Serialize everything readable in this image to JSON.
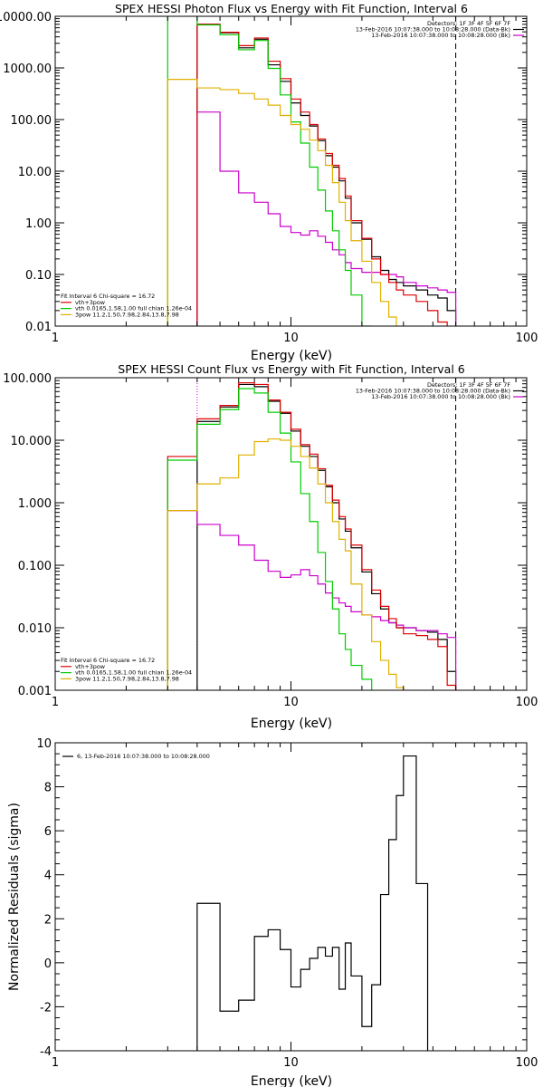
{
  "chart_data": [
    {
      "type": "line",
      "title": "SPEX HESSI Photon Flux vs Energy with Fit Function, Interval 6",
      "xlabel": "Energy (keV)",
      "ylabel": "",
      "xscale": "log",
      "yscale": "log",
      "xlim": [
        1,
        100
      ],
      "ylim": [
        0.01,
        10000
      ],
      "xticks": [
        1,
        10,
        100
      ],
      "xticklabels": [
        "1",
        "10",
        "100"
      ],
      "yticks": [
        0.01,
        0.1,
        1,
        10,
        100,
        1000,
        10000
      ],
      "yticklabels": [
        "0.01",
        "0.10",
        "1.00",
        "10.00",
        "100.00",
        "1000.00",
        "10000.00"
      ],
      "vlines": [
        {
          "x": 4,
          "color": "#cc00cc",
          "style": "dotted"
        },
        {
          "x": 50,
          "color": "#000000",
          "style": "dashed"
        }
      ],
      "legend_top_right": [
        "Detectors: 1F 3F 4F 5F 6F 7F",
        "13-Feb-2016 10:07:38.000 to 10:08:28.000 (Data-Bk)",
        "13-Feb-2016 10:07:38.000 to 10:08:28.000 (Bk)"
      ],
      "legend_top_right_colors": [
        "",
        "#000000",
        "#cc00cc"
      ],
      "legend_bottom_left": [
        "Fit Interval 6   Chi-square = 16.72",
        "vth+3pow",
        "vth 0.0165,1.58,1.00  full chian 1.26e-04",
        "3pow 11.2,1.50,7.98,2.84,13.8,7.98"
      ],
      "legend_bottom_left_colors": [
        "",
        "#dd0000",
        "#00cc00",
        "#e0b000"
      ],
      "edges": [
        3,
        4,
        5,
        6,
        7,
        8,
        9,
        10,
        11,
        12,
        13,
        14,
        15,
        16,
        17,
        18,
        20,
        22,
        24,
        26,
        28,
        30,
        34,
        38,
        42,
        46,
        50
      ],
      "series": [
        {
          "name": "Data-Bk",
          "color": "#000000",
          "start": 1,
          "values": [
            7000,
            4800,
            2450,
            3600,
            1150,
            550,
            210,
            120,
            75,
            39,
            20,
            12,
            6.5,
            3.0,
            1.0,
            0.48,
            0.22,
            0.12,
            0.08,
            0.07,
            0.06,
            0.05,
            0.04,
            0.035,
            0.02
          ]
        },
        {
          "name": "Bk",
          "color": "#cc00cc",
          "start": 1,
          "values": [
            140,
            10,
            3.8,
            2.5,
            1.5,
            0.85,
            0.65,
            0.58,
            0.7,
            0.55,
            0.42,
            0.3,
            0.24,
            0.17,
            0.13,
            0.11,
            0.11,
            0.1,
            0.1,
            0.09,
            0.07,
            0.06,
            0.055,
            0.05,
            0.045
          ]
        },
        {
          "name": "vth+3pow",
          "color": "#dd0000",
          "start": 1,
          "values": [
            7000,
            4900,
            2700,
            3800,
            1350,
            620,
            250,
            140,
            80,
            42,
            22,
            13,
            7.2,
            3.3,
            1.1,
            0.5,
            0.2,
            0.1,
            0.07,
            0.05,
            0.04,
            0.03,
            0.02,
            0.012,
            0.008
          ]
        },
        {
          "name": "vth",
          "color": "#00cc00",
          "start": 0,
          "values": [
            50000,
            6800,
            4400,
            2250,
            3400,
            980,
            300,
            90,
            35,
            12,
            4.3,
            1.7,
            0.7,
            0.3,
            0.12,
            0.04,
            0.01,
            0.002
          ]
        },
        {
          "name": "3pow",
          "color": "#e0b000",
          "start": 0,
          "values": [
            600,
            410,
            380,
            320,
            250,
            190,
            120,
            80,
            65,
            40,
            25,
            13,
            6.0,
            2.5,
            1.1,
            0.45,
            0.18,
            0.07,
            0.03,
            0.015,
            0.008,
            0.004
          ]
        }
      ]
    },
    {
      "type": "line",
      "title": "SPEX HESSI Count Flux vs Energy with Fit Function, Interval 6",
      "xlabel": "Energy (keV)",
      "ylabel": "",
      "xscale": "log",
      "yscale": "log",
      "xlim": [
        1,
        100
      ],
      "ylim": [
        0.001,
        100
      ],
      "xticks": [
        1,
        10,
        100
      ],
      "xticklabels": [
        "1",
        "10",
        "100"
      ],
      "yticks": [
        0.001,
        0.01,
        0.1,
        1,
        10,
        100
      ],
      "yticklabels": [
        "0.001",
        "0.010",
        "0.100",
        "1.000",
        "10.000",
        "100.000"
      ],
      "vlines": [
        {
          "x": 4,
          "color": "#cc00cc",
          "style": "dotted"
        },
        {
          "x": 50,
          "color": "#000000",
          "style": "dashed"
        }
      ],
      "legend_top_right": [
        "Detectors: 1F 3F 4F 5F 6F 7F",
        "13-Feb-2016 10:07:38.000 to 10:08:28.000 (Data-Bk)",
        "13-Feb-2016 10:07:38.000 to 10:08:28.000 (Bk)"
      ],
      "legend_top_right_colors": [
        "",
        "#000000",
        "#cc00cc"
      ],
      "legend_bottom_left": [
        "Fit Interval 6   Chi-square = 16.72",
        "vth+3pow",
        "vth 0.0165,1.58,1.00  full chian 1.26e-04",
        "3pow 11.2,1.50,7.98,2.84,13.8,7.98"
      ],
      "legend_bottom_left_colors": [
        "",
        "#dd0000",
        "#00cc00",
        "#e0b000"
      ],
      "edges": [
        3,
        4,
        5,
        6,
        7,
        8,
        9,
        10,
        11,
        12,
        13,
        14,
        15,
        16,
        17,
        18,
        20,
        22,
        24,
        26,
        28,
        30,
        34,
        38,
        42,
        46,
        50
      ],
      "series": [
        {
          "name": "Data-Bk",
          "color": "#000000",
          "start": 1,
          "values": [
            20,
            34,
            78,
            72,
            42,
            27,
            14,
            8.0,
            5.5,
            3.3,
            1.8,
            1.0,
            0.55,
            0.35,
            0.19,
            0.078,
            0.035,
            0.02,
            0.012,
            0.01,
            0.01,
            0.009,
            0.0085,
            0.0065,
            0.002
          ]
        },
        {
          "name": "Bk",
          "color": "#cc00cc",
          "start": 0,
          "values": [
            0.75,
            0.45,
            0.3,
            0.21,
            0.12,
            0.08,
            0.064,
            0.07,
            0.085,
            0.068,
            0.05,
            0.036,
            0.03,
            0.025,
            0.022,
            0.018,
            0.016,
            0.015,
            0.013,
            0.012,
            0.011,
            0.01,
            0.009,
            0.009,
            0.008,
            0.007
          ]
        },
        {
          "name": "vth+3pow",
          "color": "#dd0000",
          "start": 0,
          "values": [
            5.5,
            22,
            36,
            83,
            78,
            44,
            28,
            15,
            8.5,
            6.0,
            3.5,
            1.9,
            1.1,
            0.6,
            0.38,
            0.21,
            0.085,
            0.04,
            0.022,
            0.014,
            0.01,
            0.008,
            0.0075,
            0.0065,
            0.005,
            0.0012
          ]
        },
        {
          "name": "vth",
          "color": "#00cc00",
          "start": 0,
          "values": [
            4.8,
            18,
            31,
            67,
            57,
            28,
            13,
            4.5,
            1.4,
            0.5,
            0.16,
            0.055,
            0.02,
            0.008,
            0.0045,
            0.0025,
            0.0015,
            0.0008
          ]
        },
        {
          "name": "3pow",
          "color": "#e0b000",
          "start": 0,
          "values": [
            0.75,
            2.0,
            2.5,
            5.8,
            9.5,
            10.5,
            10.0,
            8.0,
            5.5,
            3.6,
            2.0,
            1.0,
            0.5,
            0.26,
            0.17,
            0.05,
            0.016,
            0.006,
            0.003,
            0.0018,
            0.0011,
            0.0008,
            0.0006
          ]
        }
      ]
    },
    {
      "type": "line",
      "title": "",
      "xlabel": "Energy (keV)",
      "ylabel": "Normalized Residuals (sigma)",
      "xscale": "log",
      "yscale": "linear",
      "xlim": [
        1,
        100
      ],
      "ylim": [
        -4,
        10
      ],
      "xticks": [
        1,
        10,
        100
      ],
      "xticklabels": [
        "1",
        "10",
        "100"
      ],
      "yticks": [
        -4,
        -2,
        0,
        2,
        4,
        6,
        8,
        10
      ],
      "yticklabels": [
        "-4",
        "-2",
        "0",
        "2",
        "4",
        "6",
        "8",
        "10"
      ],
      "legend_top_left": [
        "6, 13-Feb-2016 10:07:38.000 to 10:08:28.000"
      ],
      "legend_top_left_colors": [
        "#000000"
      ],
      "edges": [
        3,
        4,
        5,
        6,
        7,
        8,
        9,
        10,
        11,
        12,
        13,
        14,
        15,
        16,
        17,
        18,
        20,
        22,
        24,
        26,
        28,
        30,
        34,
        38,
        42,
        46,
        50
      ],
      "series": [
        {
          "name": "6, 13-Feb-2016 10:07:38.000 to 10:08:28.000",
          "color": "#000000",
          "start": 1,
          "baseline": -4,
          "values": [
            2.7,
            -2.2,
            -1.7,
            1.2,
            1.5,
            0.6,
            -1.1,
            -0.3,
            0.2,
            0.7,
            0.3,
            0.7,
            -1.2,
            0.9,
            -0.6,
            -2.9,
            -1.0,
            3.1,
            5.6,
            7.6,
            9.4,
            3.6
          ]
        }
      ]
    }
  ]
}
